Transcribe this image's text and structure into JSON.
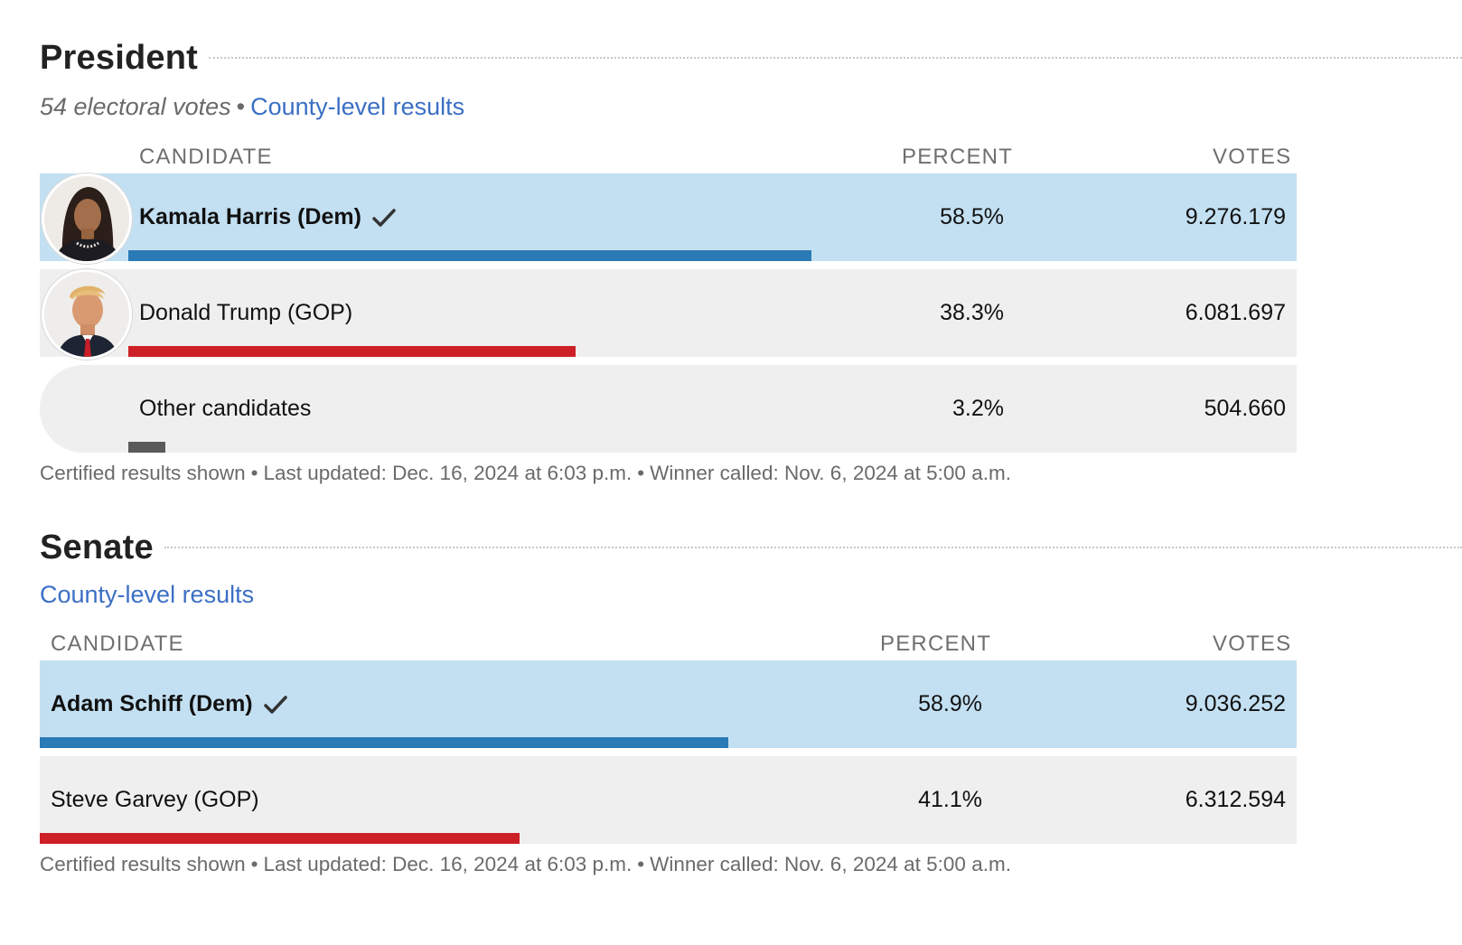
{
  "president": {
    "title": "President",
    "electoral_votes": "54 electoral votes",
    "separator": "•",
    "county_link": "County-level results",
    "headers": {
      "candidate": "CANDIDATE",
      "percent": "PERCENT",
      "votes": "VOTES"
    },
    "candidates": [
      {
        "name": "Kamala Harris (Dem)",
        "percent": "58.5%",
        "votes": "9.276.179",
        "share": 0.585,
        "winner": true,
        "party": "dem"
      },
      {
        "name": "Donald Trump (GOP)",
        "percent": "38.3%",
        "votes": "6.081.697",
        "share": 0.383,
        "winner": false,
        "party": "gop"
      },
      {
        "name": "Other candidates",
        "percent": "3.2%",
        "votes": "504.660",
        "share": 0.032,
        "winner": false,
        "party": "other"
      }
    ],
    "footer": {
      "certified": "Certified results shown",
      "last_updated": "Last updated: Dec. 16, 2024 at 6:03 p.m.",
      "winner_called": "Winner called: Nov. 6, 2024 at 5:00 a.m."
    }
  },
  "senate": {
    "title": "Senate",
    "county_link": "County-level results",
    "headers": {
      "candidate": "CANDIDATE",
      "percent": "PERCENT",
      "votes": "VOTES"
    },
    "candidates": [
      {
        "name": "Adam Schiff (Dem)",
        "percent": "58.9%",
        "votes": "9.036.252",
        "share": 0.589,
        "winner": true,
        "party": "dem"
      },
      {
        "name": "Steve Garvey (GOP)",
        "percent": "41.1%",
        "votes": "6.312.594",
        "share": 0.411,
        "winner": false,
        "party": "gop"
      }
    ],
    "footer": {
      "certified": "Certified results shown",
      "last_updated": "Last updated: Dec. 16, 2024 at 6:03 p.m.",
      "winner_called": "Winner called: Nov. 6, 2024 at 5:00 a.m."
    }
  },
  "colors": {
    "dem": "#2a7ab5",
    "gop": "#cd2026",
    "other": "#5a5a5a",
    "winner_row": "#c3e0f2",
    "row": "#efefef",
    "link": "#3b6fc4"
  }
}
